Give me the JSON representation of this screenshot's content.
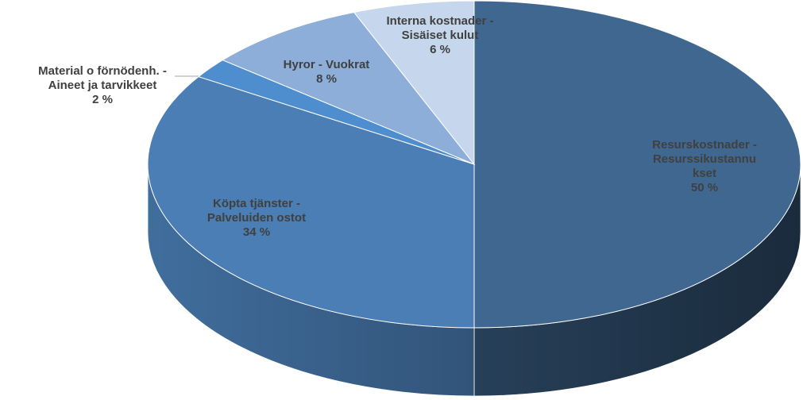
{
  "chart_data": {
    "type": "pie",
    "three_d": true,
    "categories": [
      "Resurskostnader - Resurssikustannukset",
      "Köpta tjänster - Palveluiden ostot",
      "Material o förnödenh. - Aineet ja tarvikkeet",
      "Hyror - Vuokrat",
      "Interna kostnader - Sisäiset kulut"
    ],
    "values": [
      50,
      34,
      2,
      8,
      6
    ],
    "value_labels": [
      "50 %",
      "34 %",
      "2 %",
      "8 %",
      "6 %"
    ],
    "colors": [
      "#3f6790",
      "#4a7eb4",
      "#4f8ece",
      "#8daed8",
      "#c6d6ec"
    ]
  }
}
